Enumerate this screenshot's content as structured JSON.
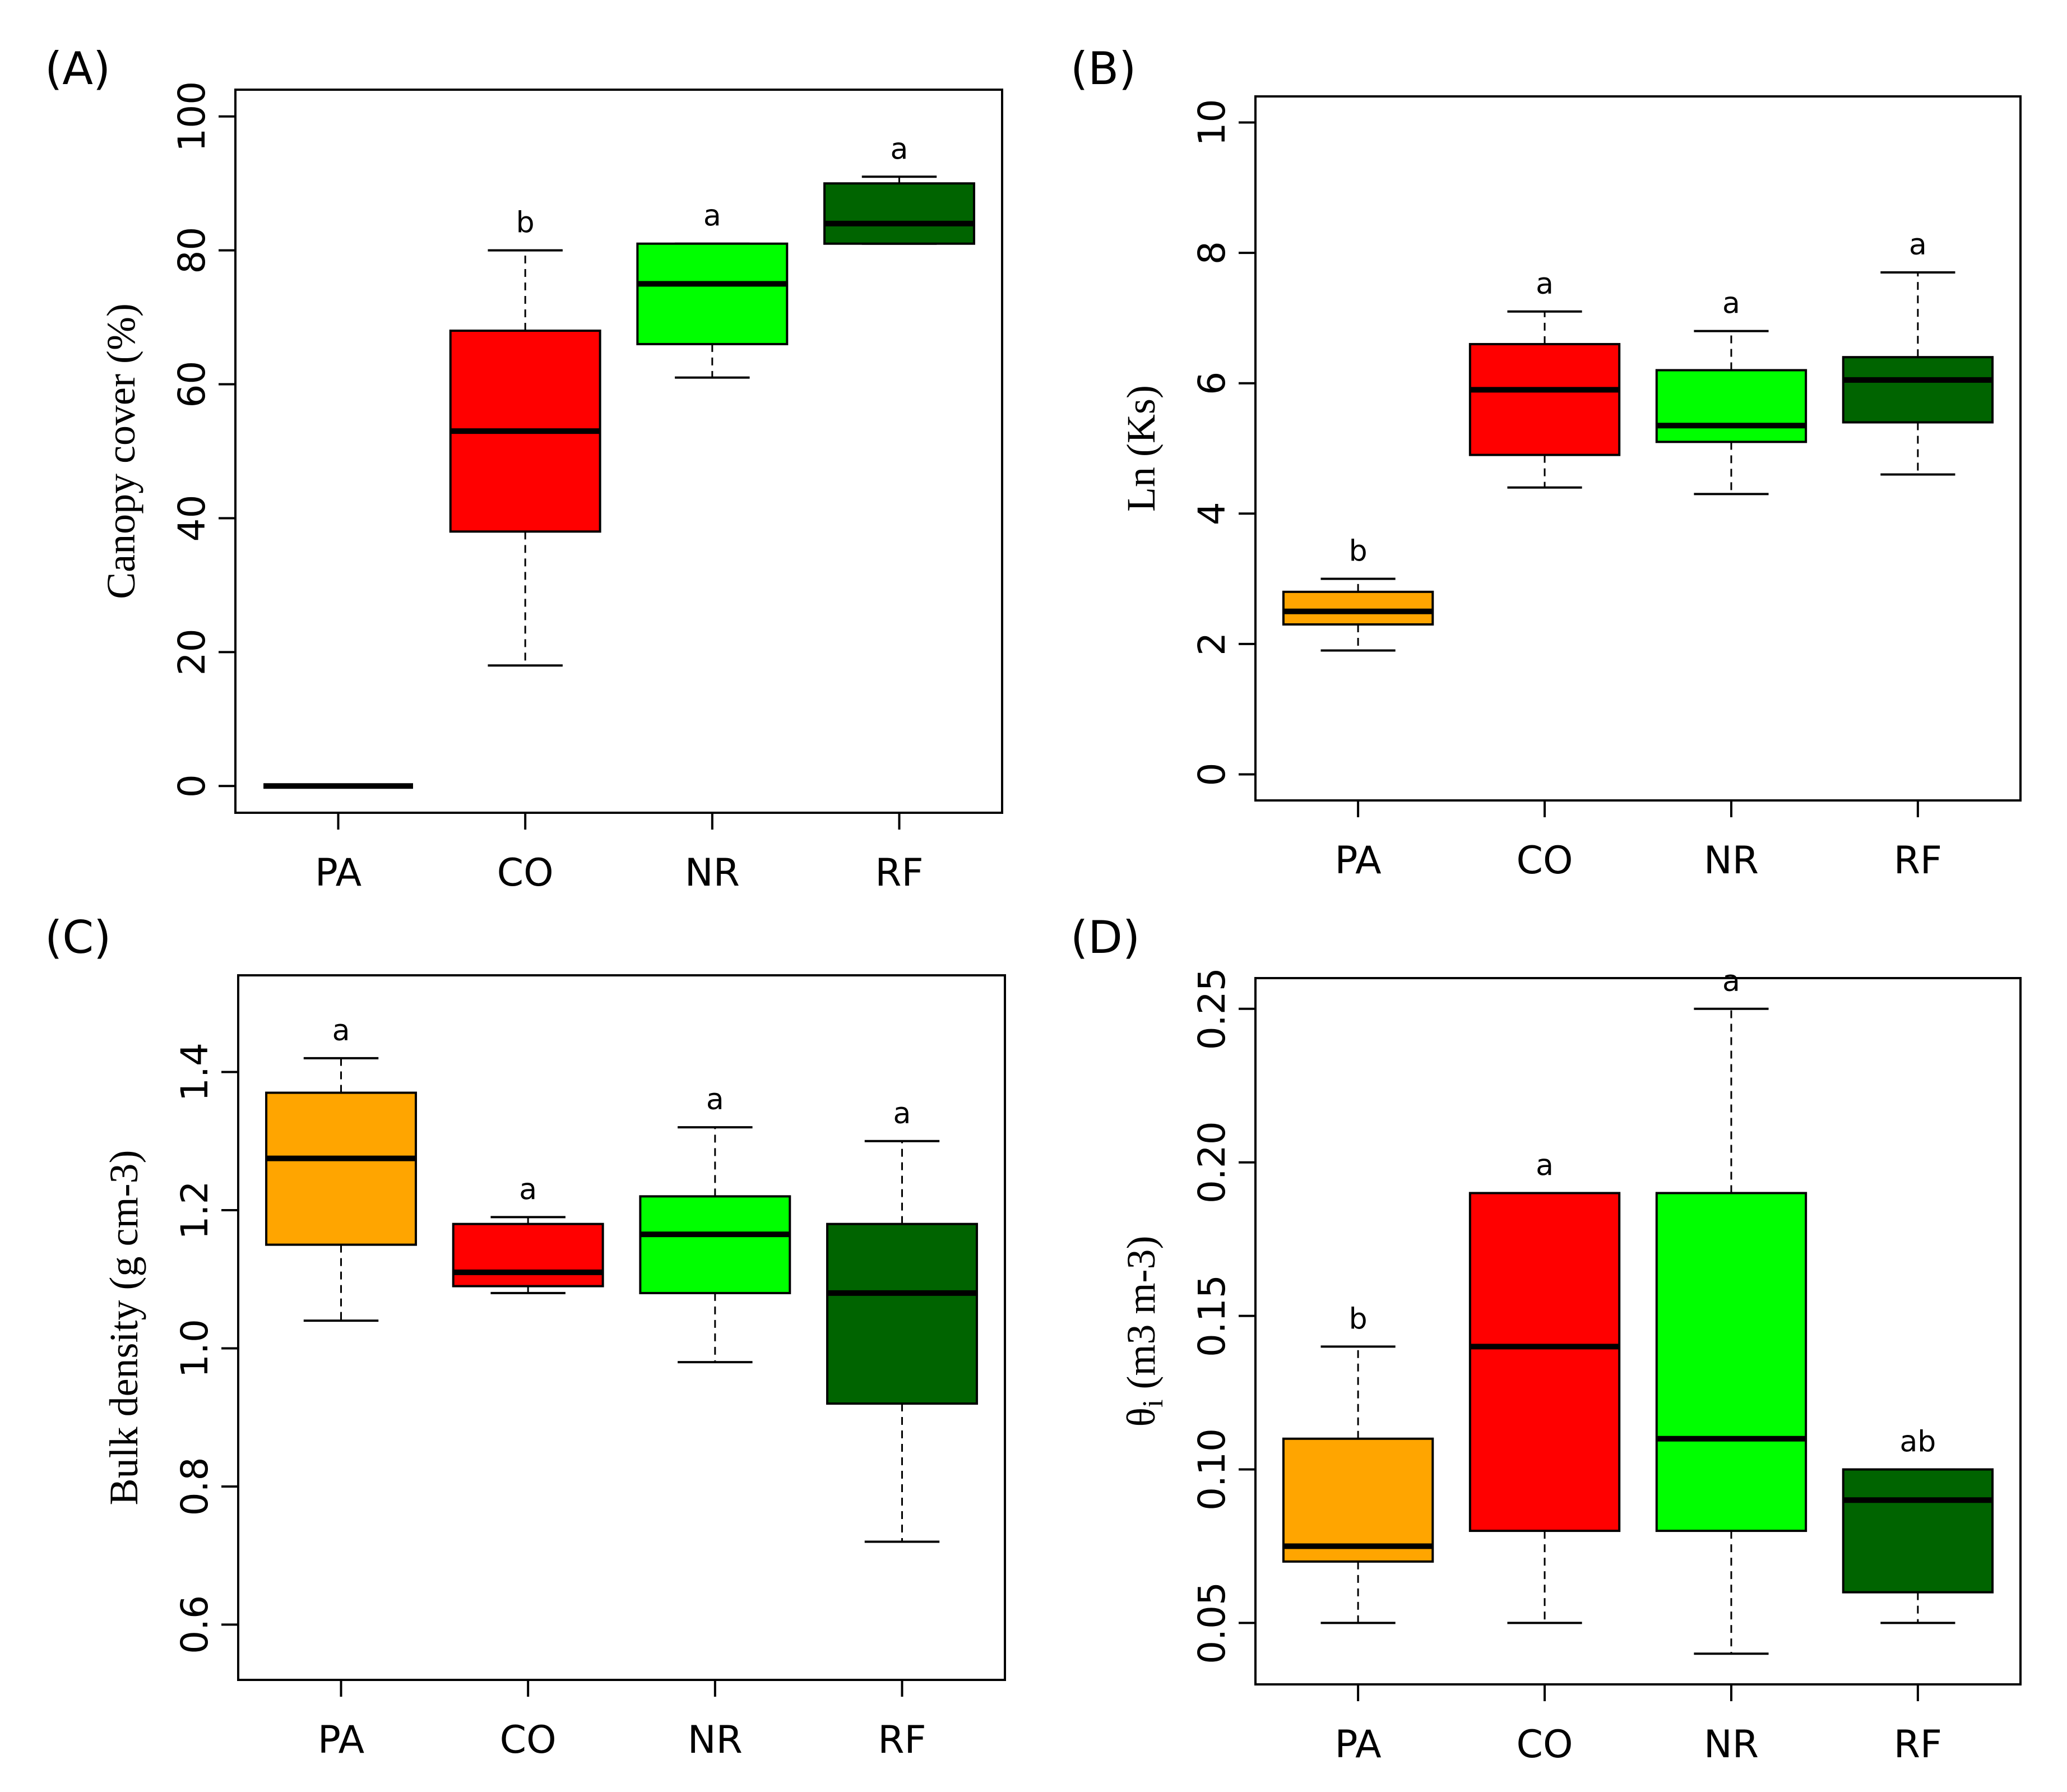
{
  "chart_data": [
    {
      "type": "box",
      "panel_label": "(A)",
      "ylabel": "Canopy cover (%)",
      "categories": [
        "PA",
        "CO",
        "NR",
        "RF"
      ],
      "yticks": [
        0,
        20,
        40,
        60,
        80,
        100
      ],
      "ytick_labels": [
        "0",
        "20",
        "40",
        "60",
        "80",
        "100"
      ],
      "ylim": [
        -4,
        104
      ],
      "grid": false,
      "colors": [
        "#ffa500",
        "#ff0000",
        "#00ff00",
        "#006400"
      ],
      "boxes": [
        {
          "category": "PA",
          "min": 0,
          "q1": 0,
          "median": 0,
          "q3": 0,
          "max": 0,
          "sig": ""
        },
        {
          "category": "CO",
          "min": 18,
          "q1": 38,
          "median": 53,
          "q3": 68,
          "max": 80,
          "sig": "b"
        },
        {
          "category": "NR",
          "min": 61,
          "q1": 66,
          "median": 75,
          "q3": 81,
          "max": 81,
          "sig": "a"
        },
        {
          "category": "RF",
          "min": 81,
          "q1": 81,
          "median": 84,
          "q3": 90,
          "max": 91,
          "sig": "a"
        }
      ]
    },
    {
      "type": "box",
      "panel_label": "(B)",
      "ylabel": "Ln (Ks)",
      "categories": [
        "PA",
        "CO",
        "NR",
        "RF"
      ],
      "yticks": [
        0,
        2,
        4,
        6,
        8,
        10
      ],
      "ytick_labels": [
        "0",
        "2",
        "4",
        "6",
        "8",
        "10"
      ],
      "ylim": [
        -0.4,
        10.4
      ],
      "grid": false,
      "colors": [
        "#ffa500",
        "#ff0000",
        "#00ff00",
        "#006400"
      ],
      "boxes": [
        {
          "category": "PA",
          "min": 1.9,
          "q1": 2.3,
          "median": 2.5,
          "q3": 2.8,
          "max": 3.0,
          "sig": "b"
        },
        {
          "category": "CO",
          "min": 4.4,
          "q1": 4.9,
          "median": 5.9,
          "q3": 6.6,
          "max": 7.1,
          "sig": "a"
        },
        {
          "category": "NR",
          "min": 4.3,
          "q1": 5.1,
          "median": 5.35,
          "q3": 6.2,
          "max": 6.8,
          "sig": "a"
        },
        {
          "category": "RF",
          "min": 4.6,
          "q1": 5.4,
          "median": 6.05,
          "q3": 6.4,
          "max": 7.7,
          "sig": "a"
        }
      ]
    },
    {
      "type": "box",
      "panel_label": "(C)",
      "ylabel": "Bulk density (g cm-3)",
      "categories": [
        "PA",
        "CO",
        "NR",
        "RF"
      ],
      "yticks": [
        0.6,
        0.8,
        1.0,
        1.2,
        1.4
      ],
      "ytick_labels": [
        "0.6",
        "0.8",
        "1.0",
        "1.2",
        "1.4"
      ],
      "ylim": [
        0.52,
        1.54
      ],
      "grid": false,
      "colors": [
        "#ffa500",
        "#ff0000",
        "#00ff00",
        "#006400"
      ],
      "boxes": [
        {
          "category": "PA",
          "min": 1.04,
          "q1": 1.15,
          "median": 1.275,
          "q3": 1.37,
          "max": 1.42,
          "sig": "a"
        },
        {
          "category": "CO",
          "min": 1.08,
          "q1": 1.09,
          "median": 1.11,
          "q3": 1.18,
          "max": 1.19,
          "sig": "a"
        },
        {
          "category": "NR",
          "min": 0.98,
          "q1": 1.08,
          "median": 1.165,
          "q3": 1.22,
          "max": 1.32,
          "sig": "a"
        },
        {
          "category": "RF",
          "min": 0.72,
          "q1": 0.92,
          "median": 1.08,
          "q3": 1.18,
          "max": 1.3,
          "sig": "a"
        }
      ]
    },
    {
      "type": "box",
      "panel_label": "(D)",
      "ylabel": "θi (m3 m-3)",
      "ylabel_symbol": "θ",
      "ylabel_subscript": "i",
      "ylabel_units": " (m3 m-3)",
      "categories": [
        "PA",
        "CO",
        "NR",
        "RF"
      ],
      "yticks": [
        0.05,
        0.1,
        0.15,
        0.2,
        0.25
      ],
      "ytick_labels": [
        "0.05",
        "0.10",
        "0.15",
        "0.20",
        "0.25"
      ],
      "ylim": [
        0.03,
        0.26
      ],
      "grid": false,
      "colors": [
        "#ffa500",
        "#ff0000",
        "#00ff00",
        "#006400"
      ],
      "boxes": [
        {
          "category": "PA",
          "min": 0.05,
          "q1": 0.07,
          "median": 0.075,
          "q3": 0.11,
          "max": 0.14,
          "sig": "b"
        },
        {
          "category": "CO",
          "min": 0.05,
          "q1": 0.08,
          "median": 0.14,
          "q3": 0.19,
          "max": 0.19,
          "sig": "a"
        },
        {
          "category": "NR",
          "min": 0.04,
          "q1": 0.08,
          "median": 0.11,
          "q3": 0.19,
          "max": 0.25,
          "sig": "a"
        },
        {
          "category": "RF",
          "min": 0.05,
          "q1": 0.06,
          "median": 0.09,
          "q3": 0.1,
          "max": 0.1,
          "sig": "ab"
        }
      ]
    }
  ]
}
